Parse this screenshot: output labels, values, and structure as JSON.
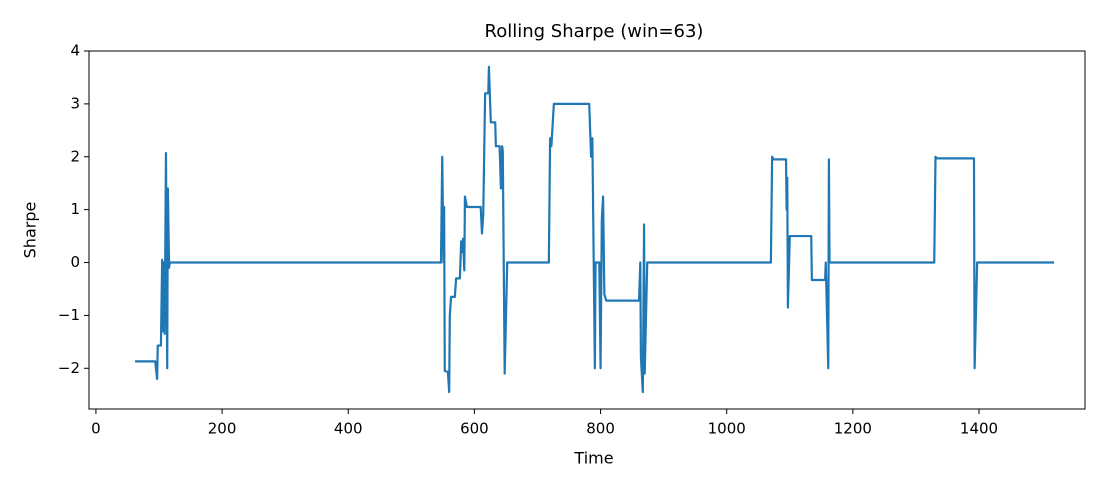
{
  "chart_data": {
    "type": "line",
    "title": "Rolling Sharpe (win=63)",
    "x_label": "Time",
    "y_label": "Sharpe",
    "color": "#1f77b4",
    "x": [
      62,
      94,
      97,
      98,
      103,
      105,
      106,
      107,
      109,
      111,
      113,
      114,
      116,
      117,
      547,
      549,
      551,
      552,
      553,
      558,
      560,
      561,
      563,
      569,
      571,
      577,
      579,
      581,
      582,
      584,
      585,
      588,
      610,
      612,
      614,
      617,
      622,
      623,
      626,
      633,
      634,
      640,
      642,
      644,
      645,
      648,
      652,
      718,
      720,
      722,
      726,
      782,
      785,
      787,
      791,
      792,
      798,
      800,
      802,
      804,
      806,
      809,
      861,
      863,
      864,
      867,
      869,
      870,
      874,
      1070,
      1072,
      1074,
      1094,
      1095,
      1096,
      1097,
      1100,
      1134,
      1135,
      1156,
      1157,
      1161,
      1162,
      1163,
      1329,
      1331,
      1333,
      1392,
      1393,
      1397,
      1519
    ],
    "values": [
      -1.87,
      -1.87,
      -2.2,
      -1.57,
      -1.57,
      0.05,
      -1.3,
      0,
      -1.35,
      2.07,
      -2.0,
      1.4,
      -0.1,
      0,
      0,
      2.0,
      0,
      1.05,
      -2.05,
      -2.07,
      -2.45,
      -1.0,
      -0.65,
      -0.65,
      -0.3,
      -0.3,
      0.4,
      0.2,
      0.45,
      -0.15,
      1.25,
      1.05,
      1.05,
      0.55,
      0.9,
      3.2,
      3.2,
      3.7,
      2.65,
      2.65,
      2.2,
      2.2,
      1.4,
      2.2,
      2.1,
      -2.1,
      0,
      0,
      2.35,
      2.2,
      3.0,
      3.0,
      2.0,
      2.35,
      -2.0,
      0,
      0,
      -2.0,
      0.8,
      1.25,
      -0.6,
      -0.72,
      -0.72,
      0,
      -1.8,
      -2.45,
      0.72,
      -2.1,
      0,
      0,
      2.0,
      1.95,
      1.95,
      1.0,
      1.6,
      -0.85,
      0.5,
      0.5,
      -0.33,
      -0.33,
      0,
      -2.0,
      1.95,
      0,
      0,
      2.0,
      1.97,
      1.97,
      -2.0,
      0,
      0
    ],
    "xlim": [
      -11,
      1568
    ],
    "ylim": [
      -2.77,
      4.0
    ],
    "xticks": [
      0,
      200,
      400,
      600,
      800,
      1000,
      1200,
      1400
    ],
    "yticks": [
      {
        "value": -2,
        "label": "−2"
      },
      {
        "value": -1,
        "label": "−1"
      },
      0,
      1,
      2,
      3,
      4
    ]
  }
}
